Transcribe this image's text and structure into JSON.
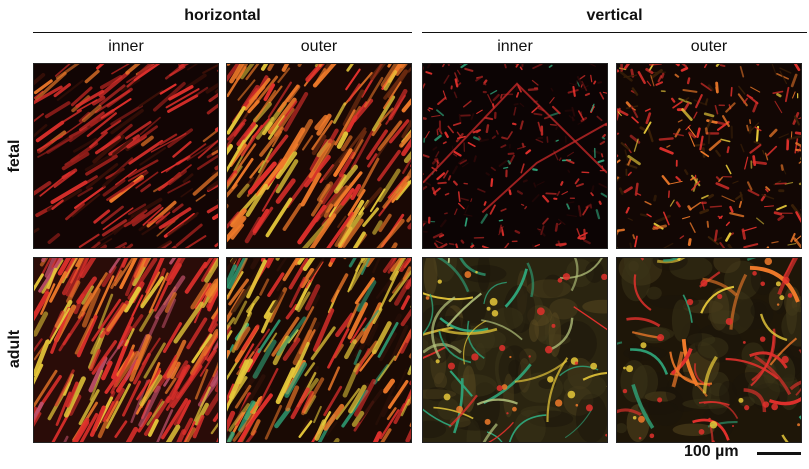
{
  "headers": {
    "horizontal": "horizontal",
    "vertical": "vertical"
  },
  "columns": [
    "inner",
    "outer",
    "inner",
    "outer"
  ],
  "rows": [
    "fetal",
    "adult"
  ],
  "scale_bar": {
    "label": "100 µm"
  },
  "palette": {
    "background": "#0a0504",
    "red": "#e0302c",
    "orange": "#f07a2a",
    "yellow": "#e6c83a",
    "green": "#2fa57a"
  }
}
